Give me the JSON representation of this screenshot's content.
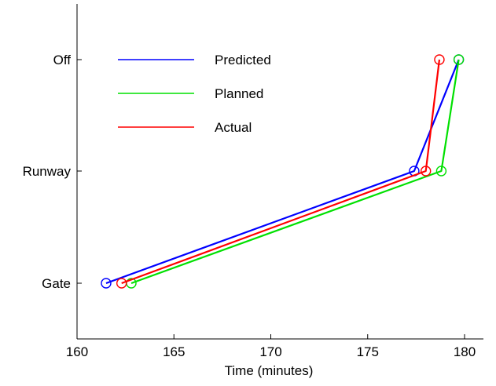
{
  "chart_data": {
    "type": "line",
    "title": "",
    "xlabel": "Time (minutes)",
    "ylabel": "",
    "xlim": [
      160,
      180
    ],
    "x_ticks": [
      160,
      165,
      170,
      175,
      180
    ],
    "y_categories": [
      "Gate",
      "Runway",
      "Off"
    ],
    "grid": false,
    "legend_position": "top-left",
    "series": [
      {
        "name": "Predicted",
        "color": "#0000ff",
        "points": [
          {
            "x": 161.5,
            "y": "Gate"
          },
          {
            "x": 177.4,
            "y": "Runway"
          },
          {
            "x": 179.7,
            "y": "Off"
          }
        ]
      },
      {
        "name": "Planned",
        "color": "#00e000",
        "points": [
          {
            "x": 162.8,
            "y": "Gate"
          },
          {
            "x": 178.8,
            "y": "Runway"
          },
          {
            "x": 179.7,
            "y": "Off"
          }
        ]
      },
      {
        "name": "Actual",
        "color": "#ff0000",
        "points": [
          {
            "x": 162.3,
            "y": "Gate"
          },
          {
            "x": 178.0,
            "y": "Runway"
          },
          {
            "x": 178.7,
            "y": "Off"
          }
        ]
      }
    ]
  }
}
